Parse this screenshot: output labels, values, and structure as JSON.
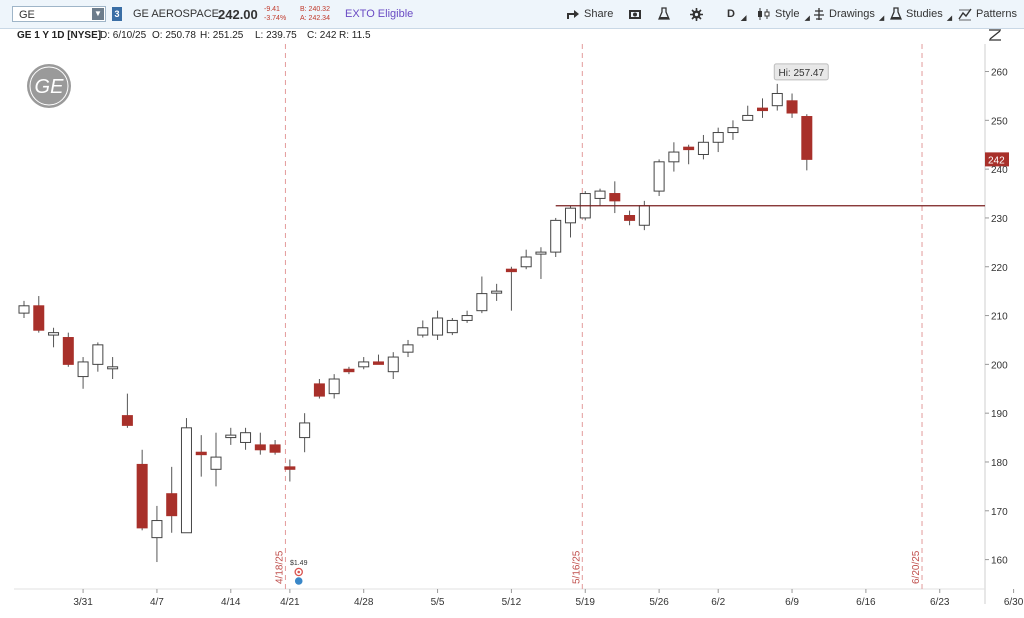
{
  "toolbar": {
    "symbol": "GE",
    "exchange_badge": "3",
    "company_name": "GE AEROSPACE",
    "last_price": "242.00",
    "change_abs": "-9.41",
    "change_pct": "-3.74%",
    "bid": "B: 240.32",
    "ask": "A: 242.34",
    "exto": "EXTO Eligible",
    "share_label": "Share",
    "period_label": "D",
    "style_label": "Style",
    "drawings_label": "Drawings",
    "studies_label": "Studies",
    "patterns_label": "Patterns"
  },
  "infobar": {
    "symbol_info": "GE 1 Y 1D [NYSE]",
    "date": "D: 6/10/25",
    "open": "O: 250.78",
    "high": "H: 251.25",
    "low": "L: 239.75",
    "close": "C: 242",
    "range": "R: 11.5"
  },
  "colors": {
    "up": "#ffffff",
    "down": "#a8302a",
    "wick": "#555555",
    "price_line": "#7a1f1f",
    "event_line": "#e39a9a"
  },
  "chart_data": {
    "type": "candlestick",
    "symbol": "GE",
    "ylim": [
      155,
      264
    ],
    "y_ticks": [
      160,
      170,
      180,
      190,
      200,
      210,
      220,
      230,
      240,
      250,
      260
    ],
    "x_tick_labels": [
      {
        "label": "3/31",
        "index": 4
      },
      {
        "label": "4/7",
        "index": 9
      },
      {
        "label": "4/14",
        "index": 14
      },
      {
        "label": "4/21",
        "index": 18
      },
      {
        "label": "4/28",
        "index": 23
      },
      {
        "label": "5/5",
        "index": 28
      },
      {
        "label": "5/12",
        "index": 33
      },
      {
        "label": "5/19",
        "index": 38
      },
      {
        "label": "5/26",
        "index": 43
      },
      {
        "label": "6/2",
        "index": 47
      },
      {
        "label": "6/9",
        "index": 52
      },
      {
        "label": "6/16",
        "index": 57
      },
      {
        "label": "6/23",
        "index": 62
      },
      {
        "label": "6/30",
        "index": 67
      }
    ],
    "event_markers": [
      {
        "label": "4/18/25",
        "index": 17.7
      },
      {
        "label": "5/16/25",
        "index": 37.8
      },
      {
        "label": "6/20/25",
        "index": 60.8
      }
    ],
    "candles": [
      {
        "o": 210.5,
        "h": 213,
        "l": 209.5,
        "c": 212
      },
      {
        "o": 212,
        "h": 214,
        "l": 206.5,
        "c": 207
      },
      {
        "o": 206,
        "h": 207.5,
        "l": 203.5,
        "c": 206.5
      },
      {
        "o": 205.5,
        "h": 206.5,
        "l": 199.5,
        "c": 200
      },
      {
        "o": 197.5,
        "h": 201.5,
        "l": 195,
        "c": 200.5
      },
      {
        "o": 200,
        "h": 204.5,
        "l": 198.5,
        "c": 204
      },
      {
        "o": 199.5,
        "h": 201.5,
        "l": 197,
        "c": 199.5
      },
      {
        "o": 189.5,
        "h": 194,
        "l": 187,
        "c": 187.5
      },
      {
        "o": 179.5,
        "h": 182.5,
        "l": 166,
        "c": 166.5
      },
      {
        "o": 164.5,
        "h": 171,
        "l": 159.5,
        "c": 168
      },
      {
        "o": 173.5,
        "h": 179,
        "l": 165.5,
        "c": 169
      },
      {
        "o": 165.5,
        "h": 189,
        "l": 165.5,
        "c": 187
      },
      {
        "o": 182,
        "h": 185.5,
        "l": 177,
        "c": 181.5
      },
      {
        "o": 178.5,
        "h": 186,
        "l": 175,
        "c": 181
      },
      {
        "o": 185,
        "h": 187,
        "l": 183.5,
        "c": 185.5
      },
      {
        "o": 184,
        "h": 187,
        "l": 182.5,
        "c": 186
      },
      {
        "o": 183.5,
        "h": 186,
        "l": 181.5,
        "c": 182.5
      },
      {
        "o": 183.5,
        "h": 184.5,
        "l": 181.5,
        "c": 182
      },
      {
        "o": 179,
        "h": 180.5,
        "l": 176,
        "c": 178.5
      },
      {
        "o": 185,
        "h": 190,
        "l": 182,
        "c": 188
      },
      {
        "o": 196,
        "h": 197,
        "l": 193,
        "c": 193.5
      },
      {
        "o": 194,
        "h": 198,
        "l": 193,
        "c": 197
      },
      {
        "o": 199,
        "h": 199.5,
        "l": 198,
        "c": 198.5
      },
      {
        "o": 199.5,
        "h": 201.5,
        "l": 199,
        "c": 200.5
      },
      {
        "o": 200.5,
        "h": 202,
        "l": 200,
        "c": 200
      },
      {
        "o": 198.5,
        "h": 202.5,
        "l": 197,
        "c": 201.5
      },
      {
        "o": 202.5,
        "h": 205,
        "l": 201.5,
        "c": 204
      },
      {
        "o": 206,
        "h": 209,
        "l": 205.5,
        "c": 207.5
      },
      {
        "o": 206,
        "h": 211,
        "l": 205,
        "c": 209.5
      },
      {
        "o": 206.5,
        "h": 209.5,
        "l": 206,
        "c": 209
      },
      {
        "o": 209,
        "h": 211,
        "l": 208.5,
        "c": 210
      },
      {
        "o": 211,
        "h": 218,
        "l": 210.5,
        "c": 214.5
      },
      {
        "o": 215,
        "h": 216.5,
        "l": 213,
        "c": 215
      },
      {
        "o": 219.5,
        "h": 220,
        "l": 211,
        "c": 219
      },
      {
        "o": 220,
        "h": 223.5,
        "l": 219.5,
        "c": 222
      },
      {
        "o": 223,
        "h": 224,
        "l": 217.5,
        "c": 223
      },
      {
        "o": 223,
        "h": 230,
        "l": 222,
        "c": 229.5
      },
      {
        "o": 229,
        "h": 232.5,
        "l": 226,
        "c": 232
      },
      {
        "o": 230,
        "h": 235.5,
        "l": 229.5,
        "c": 235
      },
      {
        "o": 234,
        "h": 236,
        "l": 232.5,
        "c": 235.5
      },
      {
        "o": 235,
        "h": 237.5,
        "l": 231,
        "c": 233.5
      },
      {
        "o": 230.5,
        "h": 231.5,
        "l": 228.5,
        "c": 229.5
      },
      {
        "o": 228.5,
        "h": 233.5,
        "l": 227.5,
        "c": 232.5
      },
      {
        "o": 235.5,
        "h": 242,
        "l": 234.5,
        "c": 241.5
      },
      {
        "o": 241.5,
        "h": 245.5,
        "l": 239.5,
        "c": 243.5
      },
      {
        "o": 244.5,
        "h": 245,
        "l": 241,
        "c": 244
      },
      {
        "o": 243,
        "h": 247,
        "l": 242,
        "c": 245.5
      },
      {
        "o": 245.5,
        "h": 248.5,
        "l": 243.5,
        "c": 247.5
      },
      {
        "o": 247.5,
        "h": 250,
        "l": 246,
        "c": 248.5
      },
      {
        "o": 250,
        "h": 253,
        "l": 250,
        "c": 251
      },
      {
        "o": 252.5,
        "h": 254.5,
        "l": 250.5,
        "c": 252
      },
      {
        "o": 253,
        "h": 257.47,
        "l": 252,
        "c": 255.5
      },
      {
        "o": 254,
        "h": 255.5,
        "l": 250.5,
        "c": 251.5
      },
      {
        "o": 250.78,
        "h": 251.25,
        "l": 239.75,
        "c": 242
      }
    ],
    "price_line": 232.5,
    "current_price_label": "242",
    "high_callout": "Hi: 257.47",
    "dividend_label": "$1.49",
    "dividend_index": 18.6,
    "dividend_icons": [
      "dividend-icon",
      "earnings-icon"
    ]
  }
}
